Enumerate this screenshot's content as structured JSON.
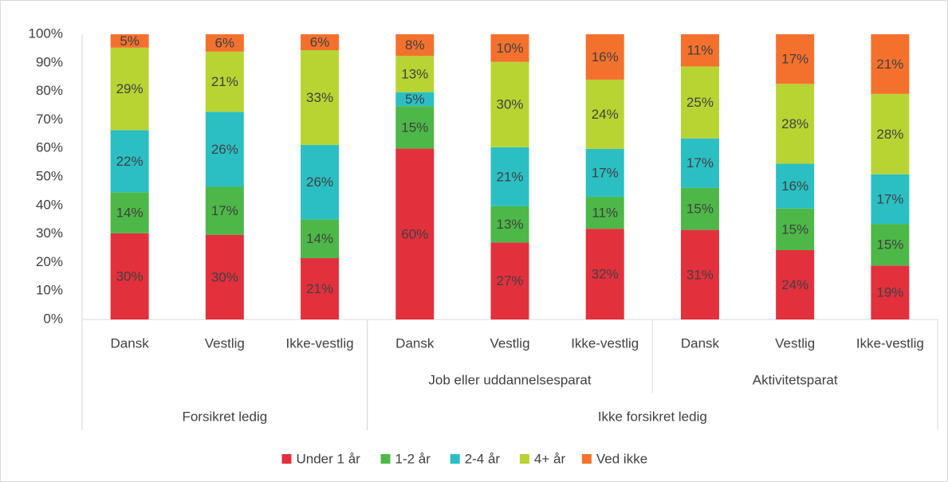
{
  "chart_data": {
    "type": "stacked_bar",
    "groups": [
      {
        "name": "Forsikret ledig",
        "categories": [
          "Dansk",
          "Vestlig",
          "Ikke-vestlig"
        ]
      },
      {
        "name": "Ikke forsikret ledig",
        "subgroups": [
          {
            "name": "Job eller uddannelsesparat",
            "categories": [
              "Dansk",
              "Vestlig",
              "Ikke-vestlig"
            ]
          },
          {
            "name": "Aktivitetsparat",
            "categories": [
              "Dansk",
              "Vestlig",
              "Ikke-vestlig"
            ]
          }
        ]
      }
    ],
    "series": [
      {
        "name": "Under 1 år",
        "color": "#e3303d",
        "values": [
          30.2,
          29.7,
          21.5,
          59.9,
          27.0,
          31.8,
          31.4,
          24.3,
          18.9
        ],
        "value_labels": [
          "30%",
          "30%",
          "21%",
          "60%",
          "27%",
          "32%",
          "31%",
          "24%",
          "19%"
        ]
      },
      {
        "name": "1-2 år",
        "color": "#4db848",
        "values": [
          14.4,
          16.8,
          13.6,
          14.9,
          12.7,
          11.2,
          14.8,
          14.6,
          14.6
        ],
        "value_labels": [
          "14%",
          "17%",
          "14%",
          "15%",
          "13%",
          "11%",
          "15%",
          "15%",
          "15%"
        ]
      },
      {
        "name": "2-4 år",
        "color": "#2bbfc4",
        "values": [
          21.8,
          26.3,
          26.1,
          4.9,
          20.7,
          16.8,
          17.3,
          15.7,
          17.4
        ],
        "value_labels": [
          "22%",
          "26%",
          "26%",
          "5%",
          "21%",
          "17%",
          "17%",
          "16%",
          "17%"
        ]
      },
      {
        "name": "4+ år",
        "color": "#b8d433",
        "values": [
          28.9,
          21.1,
          33.2,
          12.7,
          29.9,
          24.3,
          25.2,
          28.0,
          28.2
        ],
        "value_labels": [
          "29%",
          "21%",
          "33%",
          "13%",
          "30%",
          "24%",
          "25%",
          "28%",
          "28%"
        ]
      },
      {
        "name": "Ved ikke",
        "color": "#f4712d",
        "values": [
          4.7,
          6.1,
          5.6,
          7.6,
          9.7,
          15.9,
          11.3,
          17.4,
          20.9
        ],
        "value_labels": [
          "5%",
          "6%",
          "6%",
          "8%",
          "10%",
          "16%",
          "11%",
          "17%",
          "21%"
        ]
      }
    ],
    "ylim": [
      0,
      100
    ],
    "yticks": [
      {
        "value": 0,
        "label": "0%"
      },
      {
        "value": 10,
        "label": "10%"
      },
      {
        "value": 20,
        "label": "20%"
      },
      {
        "value": 30,
        "label": "30%"
      },
      {
        "value": 40,
        "label": "40%"
      },
      {
        "value": 50,
        "label": "50%"
      },
      {
        "value": 60,
        "label": "60%"
      },
      {
        "value": 70,
        "label": "70%"
      },
      {
        "value": 80,
        "label": "80%"
      },
      {
        "value": 90,
        "label": "90%"
      },
      {
        "value": 100,
        "label": "100%"
      }
    ],
    "grid": false,
    "legend": "bottom"
  }
}
